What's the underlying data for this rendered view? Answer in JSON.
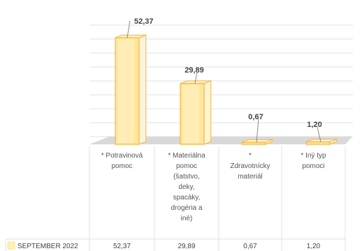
{
  "chart_data": {
    "type": "bar",
    "categories": [
      [
        "* Potravinová",
        "pomoc"
      ],
      [
        "* Materiálna",
        "pomoc",
        "(šatstvo,",
        "deky,",
        "spacáky,",
        "drogéria a",
        "iné)"
      ],
      [
        "*",
        "Zdravotnícky",
        "materiál"
      ],
      [
        "* Iný typ",
        "pomoci"
      ]
    ],
    "series": [
      {
        "name": "SEPTEMBER 2022",
        "values": [
          52.37,
          29.89,
          0.67,
          1.2
        ],
        "labels": [
          "52,37",
          "29,89",
          "0,67",
          "1,20"
        ]
      }
    ],
    "ylim": [
      0,
      60
    ],
    "grid": true,
    "style": "3d-column",
    "colors": {
      "bar_face": "#FFE699",
      "bar_edge": "#F4B342",
      "grid": "#D9D9D9",
      "floor": "#D9D9D9",
      "text": "#404040",
      "legend_key": "#FFF2B3"
    }
  }
}
